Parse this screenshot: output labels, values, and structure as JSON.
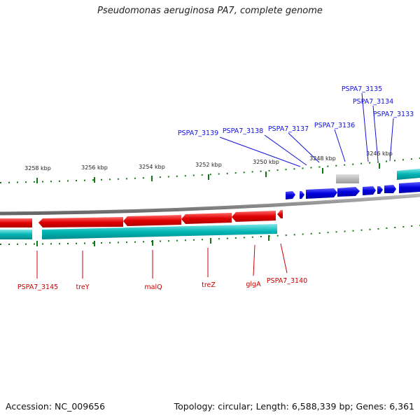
{
  "title": "Pseudomonas aeruginosa PA7, complete genome",
  "footer": {
    "accession": "Accession: NC_009656",
    "topology": "Topology: circular; Length: 6,588,339 bp; Genes: 6,361"
  },
  "ruler": {
    "labels": [
      "3258 kbp",
      "3256 kbp",
      "3254 kbp",
      "3252 kbp",
      "3250 kbp",
      "3248 kbp",
      "3246 kbp"
    ]
  },
  "genes_forward": [
    "PSPA7_3139",
    "PSPA7_3138",
    "PSPA7_3137",
    "PSPA7_3136",
    "PSPA7_3135",
    "PSPA7_3134",
    "PSPA7_3133"
  ],
  "genes_reverse": [
    "PSPA7_3145",
    "treY",
    "malQ",
    "treZ",
    "glgA",
    "PSPA7_3140"
  ],
  "colors": {
    "forward": "#0000dd",
    "reverse": "#ee0000",
    "other": "#00b4b4",
    "label_forward": "#1010e0",
    "label_reverse": "#cc0000",
    "tick": "#117711"
  }
}
